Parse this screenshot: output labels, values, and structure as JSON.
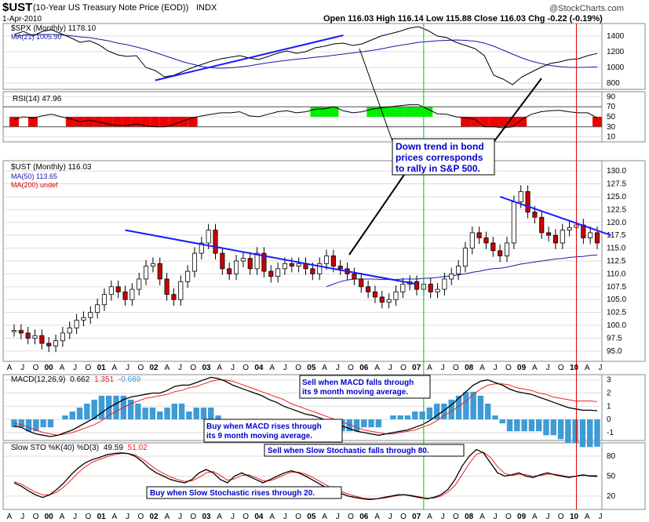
{
  "header": {
    "symbol": "$UST",
    "description": "(10-Year US Treasury Note Price (EOD))",
    "exchange": "INDX",
    "date": "1-Apr-2010",
    "ohlc": "Open 116.03  High 116.14  Low 115.88  Close 116.03  Chg -0.22 (-0.19%)",
    "watermark": "@StockCharts.com"
  },
  "colors": {
    "price_up": "#ffffff",
    "price_down": "#cc0000",
    "ma_blue": "#1a1aaa",
    "trendline": "#1a1aff",
    "rsi_green": "#00ee00",
    "rsi_red": "#ee0000",
    "macd_hist": "#3d9bd6",
    "signal_red": "#ee2222",
    "vline_green": "#00cc00",
    "vline_red": "#dd0000",
    "annotation_blue": "#0000cc"
  },
  "chart_data": {
    "type": "candlestick",
    "x_labels": [
      "A",
      "J",
      "O",
      "00",
      "A",
      "J",
      "O",
      "01",
      "A",
      "J",
      "O",
      "02",
      "A",
      "J",
      "O",
      "03",
      "A",
      "J",
      "O",
      "04",
      "A",
      "J",
      "O",
      "05",
      "A",
      "J",
      "O",
      "06",
      "A",
      "J",
      "O",
      "07",
      "A",
      "J",
      "O",
      "08",
      "A",
      "J",
      "O",
      "09",
      "A",
      "J",
      "O",
      "10",
      "A",
      "J"
    ],
    "panels": {
      "spx": {
        "label": "$SPX (Monthly) 1178.10",
        "ma_label": "MA(21) 1005.90",
        "y_ticks": [
          800,
          1000,
          1200,
          1400
        ],
        "ylim": [
          720,
          1560
        ],
        "close": [
          1420,
          1460,
          1400,
          1460,
          1480,
          1430,
          1380,
          1320,
          1340,
          1290,
          1210,
          1160,
          1140,
          1150,
          1000,
          960,
          880,
          900,
          950,
          1000,
          1040,
          1080,
          1110,
          1130,
          1150,
          1120,
          1100,
          1140,
          1180,
          1210,
          1180,
          1200,
          1250,
          1270,
          1300,
          1310,
          1280,
          1300,
          1350,
          1400,
          1430,
          1460,
          1500,
          1520,
          1470,
          1400,
          1380,
          1320,
          1280,
          1240,
          1150,
          900,
          850,
          780,
          880,
          940,
          1000,
          1050,
          1070,
          1100,
          1110,
          1150,
          1178
        ],
        "ma21": [
          1400,
          1410,
          1420,
          1420,
          1420,
          1415,
          1405,
          1390,
          1380,
          1360,
          1340,
          1310,
          1290,
          1260,
          1230,
          1190,
          1150,
          1110,
          1070,
          1040,
          1010,
          995,
          990,
          995,
          1005,
          1020,
          1040,
          1060,
          1075,
          1090,
          1105,
          1115,
          1130,
          1140,
          1155,
          1170,
          1185,
          1200,
          1215,
          1235,
          1260,
          1280,
          1300,
          1320,
          1330,
          1340,
          1345,
          1350,
          1345,
          1335,
          1310,
          1270,
          1220,
          1170,
          1120,
          1080,
          1050,
          1025,
          1010,
          1000,
          1000,
          1003,
          1006
        ]
      },
      "rsi": {
        "label": "RSI(14) 47.96",
        "y_ticks": [
          10,
          30,
          50,
          70,
          90
        ],
        "levels": [
          30,
          70
        ],
        "values": [
          45,
          50,
          47,
          52,
          55,
          50,
          46,
          40,
          43,
          40,
          35,
          33,
          32,
          36,
          32,
          30,
          30,
          35,
          42,
          48,
          52,
          55,
          58,
          58,
          60,
          52,
          50,
          55,
          60,
          62,
          58,
          60,
          65,
          66,
          70,
          62,
          58,
          60,
          65,
          68,
          70,
          72,
          74,
          74,
          65,
          56,
          55,
          50,
          48,
          45,
          30,
          30,
          28,
          30,
          45,
          55,
          60,
          62,
          63,
          60,
          58,
          58,
          48
        ]
      },
      "price": {
        "label": "$UST (Monthly) 116.03",
        "ma50_label": "MA(50) 113.65",
        "ma200_label": "MA(200) undef",
        "y_ticks": [
          95.0,
          97.5,
          100.0,
          102.5,
          105.0,
          107.5,
          110.0,
          112.5,
          115.0,
          117.5,
          120.0,
          122.5,
          125.0,
          127.5,
          130.0
        ],
        "ylim": [
          93.0,
          132.0
        ],
        "close": [
          99.0,
          98.5,
          97.5,
          98.0,
          96.5,
          96.0,
          97.0,
          98.5,
          99.5,
          101.0,
          101.5,
          102.5,
          104.0,
          106.0,
          107.5,
          106.5,
          105.0,
          107.0,
          109.0,
          111.5,
          112.0,
          109.0,
          106.0,
          105.0,
          108.5,
          110.5,
          114.0,
          116.0,
          118.5,
          114.0,
          111.0,
          110.0,
          112.5,
          113.0,
          111.0,
          114.0,
          110.5,
          109.5,
          111.0,
          112.0,
          111.5,
          112.0,
          111.0,
          110.0,
          112.0,
          113.5,
          111.5,
          111.0,
          110.0,
          109.0,
          107.5,
          106.5,
          105.5,
          104.5,
          105.0,
          106.5,
          108.0,
          108.5,
          107.0,
          108.0,
          106.5,
          107.0,
          109.0,
          110.0,
          111.5,
          115.0,
          118.0,
          117.0,
          116.0,
          114.5,
          113.5,
          116.0,
          124.0,
          126.0,
          122.0,
          121.0,
          118.0,
          117.5,
          116.0,
          118.5,
          119.0,
          119.5,
          117.0,
          118.0,
          116.0
        ],
        "ma50": [
          null,
          null,
          null,
          null,
          null,
          null,
          null,
          null,
          null,
          null,
          null,
          null,
          null,
          null,
          null,
          null,
          null,
          null,
          null,
          null,
          null,
          null,
          null,
          null,
          null,
          null,
          null,
          null,
          null,
          null,
          null,
          null,
          null,
          null,
          null,
          null,
          null,
          null,
          null,
          null,
          null,
          null,
          null,
          null,
          null,
          107.5,
          108.0,
          108.5,
          108.8,
          109.0,
          109.0,
          109.0,
          109.0,
          108.9,
          108.9,
          108.9,
          109.0,
          109.0,
          109.0,
          109.1,
          109.2,
          109.3,
          109.5,
          109.6,
          109.8,
          110.0,
          110.3,
          110.5,
          110.8,
          111.0,
          111.1,
          111.3,
          111.6,
          111.9,
          112.1,
          112.3,
          112.5,
          112.7,
          112.9,
          113.0,
          113.2,
          113.3,
          113.4,
          113.6,
          113.65
        ]
      },
      "macd": {
        "label_prefix": "MACD(12,26,9)",
        "macd_value": "0.662",
        "signal_value": "1.351",
        "hist_value": "-0.689",
        "y_ticks": [
          -1,
          0,
          1,
          2,
          3
        ],
        "ylim": [
          -1.6,
          3.4
        ],
        "macd": [
          -0.5,
          -0.6,
          -0.9,
          -1.1,
          -1.2,
          -1.3,
          -1.2,
          -1.0,
          -0.8,
          -0.5,
          -0.2,
          0.1,
          0.5,
          0.9,
          1.2,
          1.5,
          1.7,
          1.8,
          1.9,
          2.0,
          2.0,
          2.2,
          2.5,
          2.6,
          2.6,
          2.8,
          3.0,
          3.2,
          3.1,
          2.9,
          2.6,
          2.4,
          2.2,
          2.0,
          1.8,
          1.5,
          1.3,
          1.0,
          0.8,
          0.6,
          0.4,
          0.3,
          0.1,
          -0.1,
          -0.3,
          -0.5,
          -0.7,
          -0.9,
          -1.0,
          -1.1,
          -1.2,
          -1.1,
          -1.0,
          -0.9,
          -0.8,
          -0.6,
          -0.4,
          -0.1,
          0.3,
          0.7,
          1.1,
          1.6,
          2.1,
          2.6,
          2.9,
          3.0,
          2.8,
          2.6,
          2.3,
          2.1,
          2.0,
          1.9,
          1.7,
          1.5,
          1.3,
          1.1,
          0.9,
          0.8,
          0.7,
          0.7,
          0.66
        ],
        "signal": [
          -0.3,
          -0.4,
          -0.6,
          -0.8,
          -1.0,
          -1.1,
          -1.2,
          -1.1,
          -1.0,
          -0.8,
          -0.6,
          -0.4,
          -0.1,
          0.3,
          0.6,
          0.9,
          1.2,
          1.4,
          1.6,
          1.7,
          1.8,
          1.9,
          2.1,
          2.2,
          2.4,
          2.5,
          2.7,
          2.9,
          3.0,
          3.0,
          2.9,
          2.7,
          2.5,
          2.3,
          2.1,
          1.9,
          1.7,
          1.5,
          1.2,
          1.0,
          0.8,
          0.6,
          0.4,
          0.2,
          0.0,
          -0.2,
          -0.4,
          -0.6,
          -0.8,
          -0.9,
          -1.0,
          -1.1,
          -1.1,
          -1.0,
          -0.9,
          -0.8,
          -0.6,
          -0.4,
          -0.1,
          0.3,
          0.6,
          1.0,
          1.4,
          1.9,
          2.3,
          2.6,
          2.7,
          2.7,
          2.6,
          2.4,
          2.3,
          2.2,
          2.0,
          1.9,
          1.7,
          1.6,
          1.5,
          1.4,
          1.4,
          1.4,
          1.35
        ]
      },
      "sto": {
        "label_prefix": "Slow STO %K(40) %D(3)",
        "k_value": "49.59",
        "d_value": "51.02",
        "y_ticks": [
          20,
          50,
          80
        ],
        "ylim": [
          0,
          100
        ],
        "k": [
          40,
          35,
          28,
          22,
          18,
          22,
          30,
          40,
          52,
          62,
          70,
          75,
          78,
          82,
          84,
          85,
          84,
          80,
          72,
          62,
          55,
          50,
          45,
          42,
          40,
          45,
          55,
          60,
          55,
          45,
          40,
          50,
          55,
          50,
          45,
          40,
          45,
          50,
          55,
          58,
          55,
          50,
          44,
          38,
          32,
          28,
          24,
          20,
          18,
          16,
          15,
          16,
          18,
          20,
          22,
          22,
          20,
          18,
          16,
          18,
          22,
          30,
          45,
          65,
          80,
          90,
          85,
          70,
          55,
          50,
          52,
          55,
          50,
          48,
          52,
          55,
          52,
          50,
          48,
          50,
          52,
          50,
          49.6
        ],
        "d": [
          42,
          38,
          32,
          26,
          22,
          22,
          26,
          34,
          44,
          55,
          64,
          71,
          75,
          79,
          82,
          84,
          84,
          82,
          76,
          68,
          60,
          54,
          49,
          45,
          42,
          43,
          48,
          55,
          57,
          51,
          44,
          46,
          51,
          52,
          48,
          43,
          43,
          47,
          52,
          56,
          56,
          53,
          48,
          42,
          36,
          31,
          27,
          23,
          20,
          17,
          16,
          16,
          17,
          19,
          21,
          22,
          21,
          19,
          17,
          17,
          20,
          26,
          36,
          52,
          69,
          83,
          86,
          78,
          64,
          54,
          51,
          53,
          52,
          50,
          51,
          53,
          53,
          51,
          49,
          50,
          51,
          51,
          51.0
        ]
      }
    },
    "trendlines": [
      {
        "panel": "spx",
        "from": [
          15,
          835
        ],
        "to": [
          35,
          1410
        ]
      },
      {
        "panel": "spx",
        "from": [
          70,
          870
        ],
        "to": [
          82,
          1350
        ]
      },
      {
        "panel": "price",
        "from": [
          16,
          118.5
        ],
        "to": [
          58,
          108.0
        ]
      },
      {
        "panel": "price",
        "from": [
          70,
          125.0
        ],
        "to": [
          86,
          117.5
        ]
      }
    ],
    "vertical_markers": [
      {
        "index": 59,
        "color": "green"
      },
      {
        "index": 81,
        "color": "red"
      }
    ]
  },
  "annotations": {
    "main_note": [
      "Down trend in bond",
      "prices corresponds",
      "to rally in S&P 500."
    ],
    "macd_sell": [
      "Sell when MACD falls through",
      "its 9 month moving average."
    ],
    "macd_buy": [
      "Buy when MACD rises through",
      "its 9 month moving average."
    ],
    "sto_sell": "Sell when Slow Stochastic falls through 80.",
    "sto_buy": "Buy when Slow Stochastic rises through 20."
  }
}
